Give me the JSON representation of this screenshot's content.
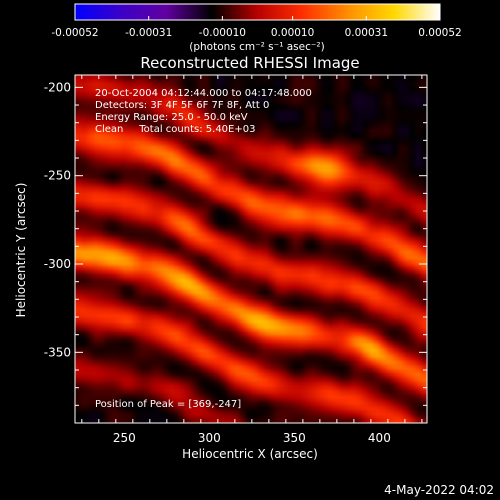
{
  "chart_data": {
    "type": "heatmap",
    "title": "Reconstructed RHESSI Image",
    "xlabel": "Heliocentric X (arcsec)",
    "ylabel": "Heliocentric Y (arcsec)",
    "xlim": [
      221,
      428
    ],
    "ylim": [
      -390,
      -193
    ],
    "x_ticks": [
      250,
      300,
      350,
      400
    ],
    "y_ticks": [
      -200,
      -250,
      -300,
      -350
    ],
    "colorbar": {
      "range": [
        -0.00052,
        0.00052
      ],
      "ticks": [
        -0.00052,
        -0.00031,
        -0.0001,
        0.0001,
        0.00031,
        0.00052
      ],
      "tick_labels": [
        "-0.00052",
        "-0.00031",
        "-0.00010",
        "0.00010",
        "0.00031",
        "0.00052"
      ],
      "units_label": "(photons cm⁻² s⁻¹ asec⁻²)",
      "colors": [
        "#0000ff",
        "#3b00c8",
        "#6000a0",
        "#000000",
        "#b80000",
        "#ff3000",
        "#ff9000",
        "#ffd800",
        "#ffffff"
      ]
    },
    "info_lines": [
      "20-Oct-2004 04:12:44.000 to 04:17:48.000",
      "Detectors: 3F 4F 5F 6F 7F 8F, Att 0",
      "Energy Range: 25.0 - 50.0 keV",
      "Clean     Total counts: 5.40E+03"
    ],
    "peak_label": "Position of Peak = [369,-247]",
    "peak": {
      "x": 369,
      "y": -247,
      "value": 0.00052
    },
    "stripes": [
      {
        "y_at_x250": -205,
        "amplitude": 0.0002
      },
      {
        "y_at_x250": -234,
        "amplitude": 0.00033
      },
      {
        "y_at_x250": -268,
        "amplitude": 0.00026
      },
      {
        "y_at_x250": -300,
        "amplitude": 0.00034
      },
      {
        "y_at_x250": -333,
        "amplitude": 0.00022
      },
      {
        "y_at_x250": -367,
        "amplitude": 0.00012
      }
    ],
    "stripe_slope": -0.36,
    "background_level": -0.00012,
    "timestamp": "4-May-2022 04:02"
  }
}
